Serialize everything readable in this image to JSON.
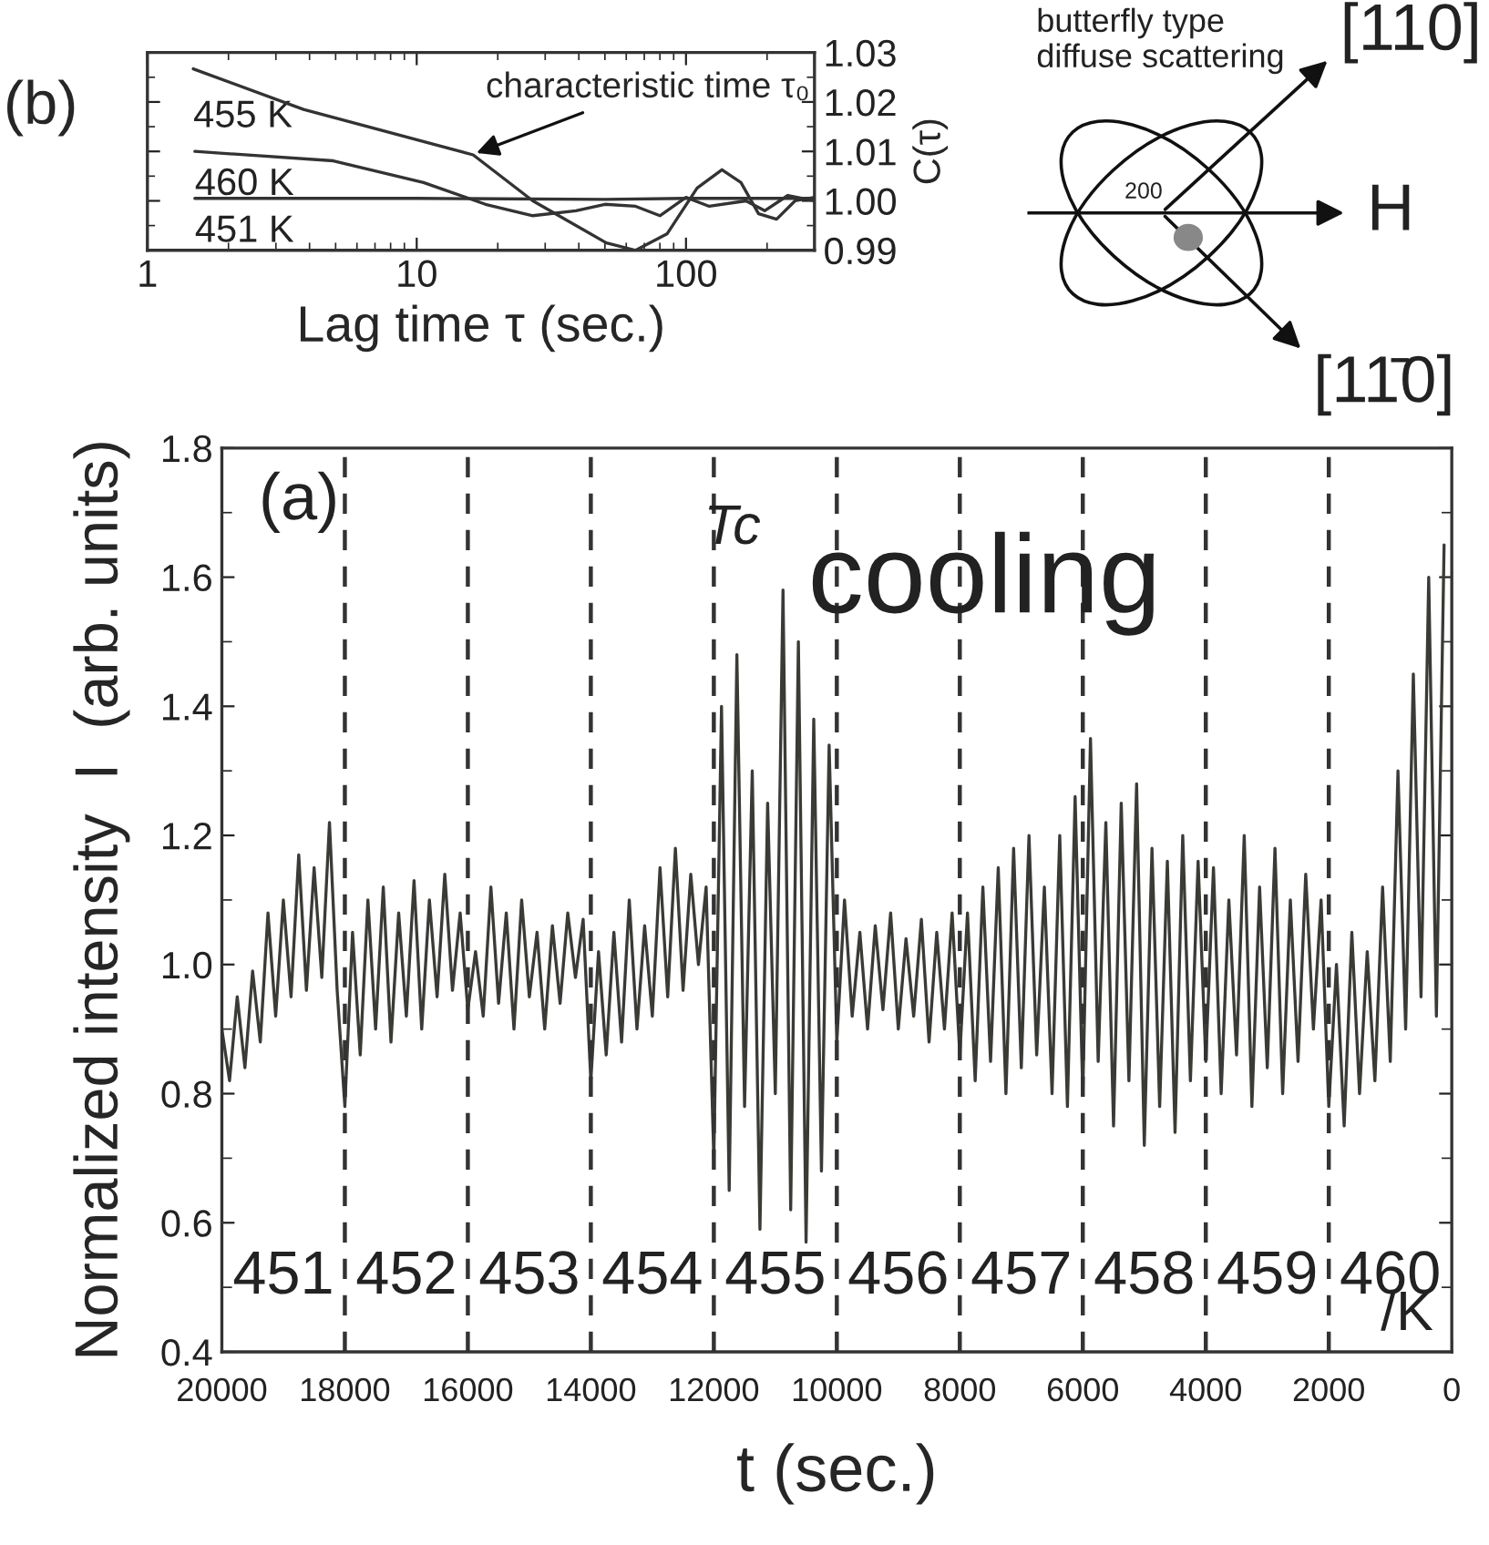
{
  "chart_data": [
    {
      "type": "line",
      "annotations": [
        "(b)",
        {
          "text": "characteristic time τ₀",
          "x": 16,
          "y": 1.0093
        },
        "butterfly type\ndiffuse scattering",
        "200",
        "H",
        "[110]",
        "[11̄0]"
      ],
      "xlabel": "Lag time τ (sec.)",
      "ylabel": "C(τ)",
      "log": "x",
      "xlim": [
        1,
        300
      ],
      "xticks": [
        1,
        10,
        100
      ],
      "ylim": [
        0.99,
        1.03
      ],
      "yticks": [
        0.99,
        {
          "value": 1.0,
          "label": "1.00"
        },
        1.01,
        1.02,
        1.03
      ],
      "series": [
        {
          "name": "455 K",
          "color": "#333333",
          "x": [
            1.48,
            3.8,
            16.2,
            27,
            50.6,
            65,
            85,
            110,
            136,
            160,
            186,
            217,
            254,
            300
          ],
          "values": [
            1.0267,
            1.0185,
            1.0093,
            1.0,
            0.9915,
            0.99,
            0.9933,
            1.0026,
            1.0063,
            1.0037,
            0.9974,
            0.9963,
            1.0,
            1.0007
          ]
        },
        {
          "name": "460 K",
          "color": "#333333",
          "x": [
            1.5,
            4.9,
            10.6,
            18,
            27,
            39,
            50,
            65,
            80,
            100,
            122,
            167,
            196,
            239,
            300
          ],
          "values": [
            1.01,
            1.0081,
            1.0037,
            0.9993,
            0.997,
            0.998,
            0.9993,
            0.9989,
            0.997,
            1.0007,
            0.9989,
            1.0,
            0.998,
            1.0011,
            1.0
          ]
        },
        {
          "name": "451 K",
          "color": "#333333",
          "x": [
            1.5,
            10,
            50,
            100,
            300
          ],
          "values": [
            1.0005,
            1.0005,
            1.0003,
            1.0005,
            1.0005
          ]
        }
      ]
    },
    {
      "type": "line",
      "annotations": [
        "(a)",
        "Tc",
        "cooling",
        "/K",
        "451",
        "452",
        "453",
        "454",
        "455",
        "456",
        "457",
        "458",
        "459",
        "460"
      ],
      "xlabel": "t (sec.)",
      "ylabel": "Normalized intensity  I  (arb. units)",
      "xlim": [
        20000,
        0
      ],
      "xticks": [
        20000,
        18000,
        16000,
        14000,
        12000,
        10000,
        8000,
        6000,
        4000,
        2000,
        0
      ],
      "ylim": [
        0.4,
        1.8
      ],
      "yticks": [
        0.4,
        0.6,
        0.8,
        {
          "value": 1.0,
          "label": "1.0"
        },
        1.2,
        1.4,
        1.6,
        1.8
      ],
      "ref_lines": [
        {
          "axis": "x",
          "value": 18000,
          "line_style": "dashed"
        },
        {
          "axis": "x",
          "value": 16000,
          "line_style": "dashed"
        },
        {
          "axis": "x",
          "value": 14000,
          "line_style": "dashed"
        },
        {
          "axis": "x",
          "value": 12000,
          "line_style": "dashed"
        },
        {
          "axis": "x",
          "value": 10000,
          "line_style": "dashed"
        },
        {
          "axis": "x",
          "value": 8000,
          "line_style": "dashed"
        },
        {
          "axis": "x",
          "value": 6000,
          "line_style": "dashed"
        },
        {
          "axis": "x",
          "value": 4000,
          "line_style": "dashed"
        },
        {
          "axis": "x",
          "value": 2000,
          "line_style": "dashed"
        }
      ],
      "series": [
        {
          "color": "#3a3b36",
          "x": [
            20000,
            19875,
            19750,
            19625,
            19500,
            19375,
            19250,
            19125,
            19000,
            18875,
            18750,
            18625,
            18500,
            18375,
            18250,
            18125,
            18000,
            17875,
            17750,
            17625,
            17500,
            17375,
            17250,
            17125,
            17000,
            16875,
            16750,
            16625,
            16500,
            16375,
            16250,
            16125,
            16000,
            15875,
            15750,
            15625,
            15500,
            15375,
            15250,
            15125,
            15000,
            14875,
            14750,
            14625,
            14500,
            14375,
            14250,
            14125,
            14000,
            13875,
            13750,
            13625,
            13500,
            13375,
            13250,
            13125,
            13000,
            12875,
            12750,
            12625,
            12500,
            12375,
            12250,
            12125,
            12000,
            11875,
            11750,
            11625,
            11500,
            11375,
            11250,
            11125,
            11000,
            10875,
            10750,
            10625,
            10500,
            10375,
            10250,
            10125,
            10000,
            9875,
            9750,
            9625,
            9500,
            9375,
            9250,
            9125,
            9000,
            8875,
            8750,
            8625,
            8500,
            8375,
            8250,
            8125,
            8000,
            7875,
            7750,
            7625,
            7500,
            7375,
            7250,
            7125,
            7000,
            6875,
            6750,
            6625,
            6500,
            6375,
            6250,
            6125,
            6000,
            5875,
            5750,
            5625,
            5500,
            5375,
            5250,
            5125,
            5000,
            4875,
            4750,
            4625,
            4500,
            4375,
            4250,
            4125,
            4000,
            3875,
            3750,
            3625,
            3500,
            3375,
            3250,
            3125,
            3000,
            2875,
            2750,
            2625,
            2500,
            2375,
            2250,
            2125,
            2000,
            1875,
            1750,
            1625,
            1500,
            1375,
            1250,
            1125,
            1000,
            875,
            750,
            625,
            500,
            375,
            250,
            125
          ],
          "values": [
            0.9,
            0.82,
            0.95,
            0.84,
            0.99,
            0.88,
            1.08,
            0.92,
            1.1,
            0.95,
            1.17,
            0.96,
            1.15,
            0.98,
            1.22,
            0.96,
            0.78,
            1.05,
            0.86,
            1.1,
            0.9,
            1.12,
            0.88,
            1.08,
            0.92,
            1.13,
            0.9,
            1.1,
            0.95,
            1.14,
            0.96,
            1.08,
            0.93,
            1.02,
            0.92,
            1.12,
            0.94,
            1.08,
            0.9,
            1.1,
            0.95,
            1.05,
            0.9,
            1.06,
            0.94,
            1.08,
            0.98,
            1.07,
            0.82,
            1.02,
            0.86,
            1.05,
            0.88,
            1.1,
            0.9,
            1.06,
            0.92,
            1.15,
            0.95,
            1.18,
            0.96,
            1.14,
            1.0,
            1.12,
            0.7,
            1.4,
            0.65,
            1.48,
            0.78,
            1.3,
            0.59,
            1.25,
            0.8,
            1.58,
            0.62,
            1.5,
            0.57,
            1.38,
            0.68,
            1.34,
            0.88,
            1.1,
            0.92,
            1.05,
            0.9,
            1.06,
            0.93,
            1.08,
            0.9,
            1.04,
            0.92,
            1.07,
            0.88,
            1.05,
            0.9,
            1.08,
            0.86,
            1.08,
            0.82,
            1.12,
            0.85,
            1.15,
            0.8,
            1.18,
            0.84,
            1.2,
            0.86,
            1.12,
            0.8,
            1.2,
            0.78,
            1.26,
            0.8,
            1.35,
            0.85,
            1.22,
            0.75,
            1.25,
            0.82,
            1.28,
            0.72,
            1.18,
            0.78,
            1.16,
            0.74,
            1.2,
            0.82,
            1.16,
            0.85,
            1.15,
            0.8,
            1.1,
            0.86,
            1.2,
            0.78,
            1.12,
            0.84,
            1.18,
            0.8,
            1.1,
            0.85,
            1.14,
            0.9,
            1.1,
            0.78,
            1.0,
            0.75,
            1.05,
            0.8,
            1.02,
            0.82,
            1.12,
            0.85,
            1.3,
            0.9,
            1.45,
            0.95,
            1.6,
            0.92,
            1.65
          ]
        }
      ]
    }
  ]
}
